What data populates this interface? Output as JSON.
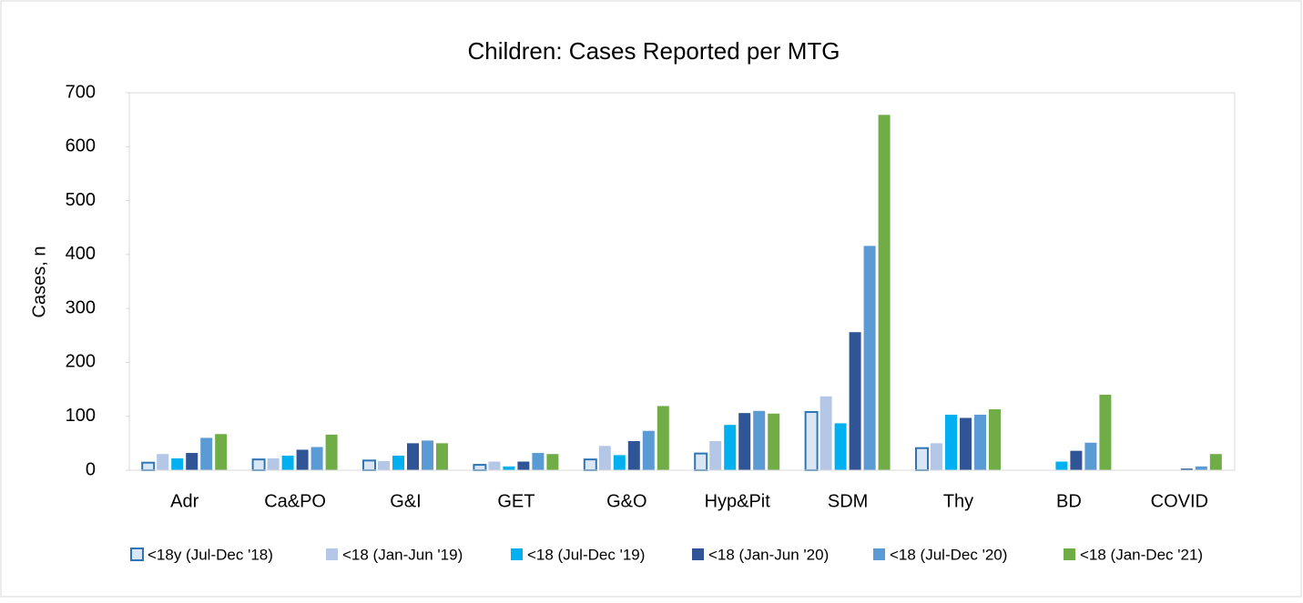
{
  "chart_data": {
    "type": "bar",
    "title": "Children: Cases Reported per MTG",
    "y_label": "Cases, n",
    "categories": [
      "Adr",
      "Ca&PO",
      "G&I",
      "GET",
      "G&O",
      "Hyp&Pit",
      "SDM",
      "Thy",
      "BD",
      "COVID"
    ],
    "series": [
      {
        "name": "<18y (Jul-Dec '18)",
        "color": "#dae6f4",
        "stroke": "#2e75b6",
        "values": [
          14,
          20,
          18,
          10,
          20,
          31,
          108,
          41,
          0,
          0
        ]
      },
      {
        "name": "<18 (Jan-Jun '19)",
        "color": "#b4c7e7",
        "values": [
          30,
          22,
          17,
          16,
          45,
          54,
          137,
          50,
          0,
          0
        ]
      },
      {
        "name": "<18 (Jul-Dec '19)",
        "color": "#00b0f0",
        "values": [
          22,
          27,
          27,
          7,
          28,
          84,
          87,
          103,
          16,
          0
        ]
      },
      {
        "name": "<18 (Jan-Jun '20)",
        "color": "#2f5597",
        "values": [
          32,
          38,
          50,
          16,
          54,
          106,
          256,
          97,
          36,
          3
        ]
      },
      {
        "name": "<18 (Jul-Dec '20)",
        "color": "#5b9bd5",
        "values": [
          60,
          43,
          55,
          32,
          73,
          110,
          416,
          103,
          51,
          7
        ]
      },
      {
        "name": "<18 (Jan-Dec '21)",
        "color": "#70ad47",
        "values": [
          67,
          66,
          50,
          30,
          119,
          105,
          659,
          113,
          140,
          30
        ]
      }
    ],
    "ylim": [
      0,
      700
    ],
    "yticks": [
      0,
      100,
      200,
      300,
      400,
      500,
      600,
      700
    ],
    "legend": "bottom"
  }
}
